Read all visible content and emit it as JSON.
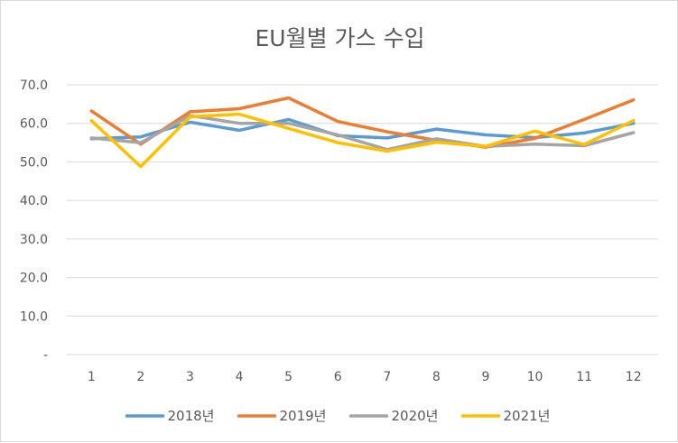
{
  "chart_data": {
    "type": "line",
    "title": "EU월별 가스 수입",
    "xlabel": "",
    "ylabel": "",
    "categories": [
      "1",
      "2",
      "3",
      "4",
      "5",
      "6",
      "7",
      "8",
      "9",
      "10",
      "11",
      "12"
    ],
    "ylim": [
      0,
      70
    ],
    "yticks": [
      "-",
      "10.0",
      "20.0",
      "30.0",
      "40.0",
      "50.0",
      "60.0",
      "70.0"
    ],
    "grid": "horizontal",
    "legend_position": "bottom",
    "series": [
      {
        "name": "2018년",
        "color": "#5b9bd5",
        "values": [
          56.0,
          56.5,
          60.3,
          58.2,
          61.0,
          56.8,
          56.2,
          58.5,
          57.0,
          56.3,
          57.5,
          60.0
        ]
      },
      {
        "name": "2019년",
        "color": "#ed7d31",
        "values": [
          63.2,
          54.6,
          63.0,
          63.8,
          66.6,
          60.5,
          57.8,
          55.6,
          53.8,
          56.1,
          61.0,
          66.1
        ]
      },
      {
        "name": "2020년",
        "color": "#a5a5a5",
        "values": [
          56.2,
          55.0,
          62.0,
          60.0,
          60.0,
          57.0,
          53.2,
          56.0,
          54.0,
          54.6,
          54.2,
          57.6
        ]
      },
      {
        "name": "2021년",
        "color": "#ffc000",
        "values": [
          60.7,
          48.8,
          61.7,
          62.4,
          58.7,
          55.0,
          52.8,
          55.1,
          54.0,
          58.0,
          54.5,
          60.7
        ]
      }
    ]
  }
}
